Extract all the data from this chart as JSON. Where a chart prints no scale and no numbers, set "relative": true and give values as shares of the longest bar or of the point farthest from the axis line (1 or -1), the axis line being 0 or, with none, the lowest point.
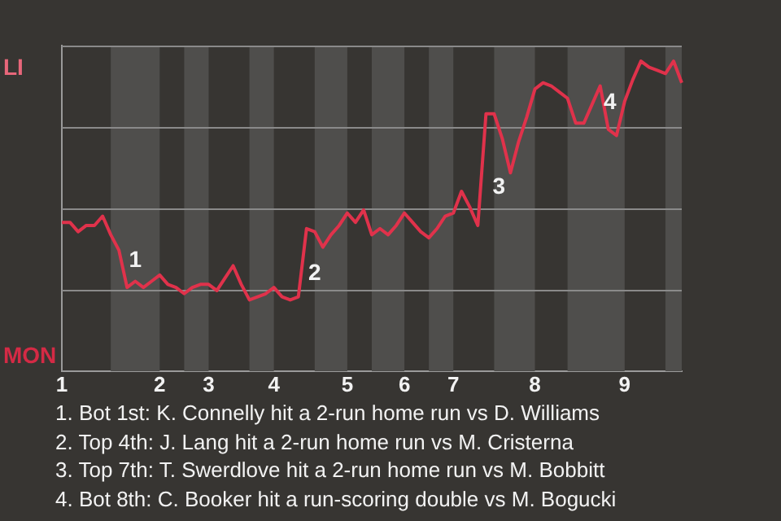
{
  "chart_data": {
    "type": "line",
    "relative": true,
    "categories": [
      "1",
      null,
      null,
      null,
      null,
      null,
      null,
      null,
      null,
      null,
      null,
      null,
      "2",
      null,
      null,
      null,
      null,
      null,
      "3",
      null,
      null,
      null,
      null,
      null,
      null,
      null,
      "4",
      null,
      null,
      null,
      null,
      null,
      null,
      null,
      null,
      "5",
      null,
      null,
      null,
      null,
      null,
      null,
      "6",
      null,
      null,
      null,
      null,
      null,
      "7",
      null,
      null,
      null,
      null,
      null,
      null,
      null,
      null,
      null,
      "8",
      null,
      null,
      null,
      null,
      null,
      null,
      null,
      null,
      null,
      null,
      "9",
      null,
      null,
      null,
      null,
      null,
      null,
      null
    ],
    "series": [
      {
        "color": "#e0324b",
        "values": [
          0.48,
          0.48,
          0.45,
          0.47,
          0.47,
          0.5,
          0.44,
          0.39,
          0.27,
          0.29,
          0.27,
          0.29,
          0.31,
          0.28,
          0.27,
          0.25,
          0.27,
          0.28,
          0.28,
          0.26,
          0.3,
          0.34,
          0.28,
          0.23,
          0.24,
          0.25,
          0.27,
          0.24,
          0.23,
          0.24,
          0.46,
          0.45,
          0.4,
          0.44,
          0.47,
          0.51,
          0.48,
          0.52,
          0.44,
          0.46,
          0.44,
          0.47,
          0.51,
          0.48,
          0.45,
          0.43,
          0.46,
          0.5,
          0.51,
          0.58,
          0.53,
          0.47,
          0.83,
          0.83,
          0.75,
          0.64,
          0.74,
          0.82,
          0.91,
          0.93,
          0.92,
          0.9,
          0.88,
          0.8,
          0.8,
          0.86,
          0.92,
          0.78,
          0.76,
          0.87,
          0.94,
          1,
          0.98,
          0.97,
          0.96,
          1,
          0.93
        ]
      }
    ],
    "legend": false,
    "marker": "none",
    "line_style": "solid",
    "annotations": [
      "LI",
      "MON",
      "1",
      "2",
      "3",
      "4",
      "1. Bot 1st: K. Connelly hit a 2-run home run vs D. Williams",
      "2. Top 4th: J. Lang hit a 2-run home run vs M. Cristerna",
      "3. Top 7th: T. Swerdlove hit a 2-run home run vs M. Bobbitt",
      "4. Bot 8th: C. Booker hit a run-scoring double vs M. Bogucki"
    ]
  }
}
